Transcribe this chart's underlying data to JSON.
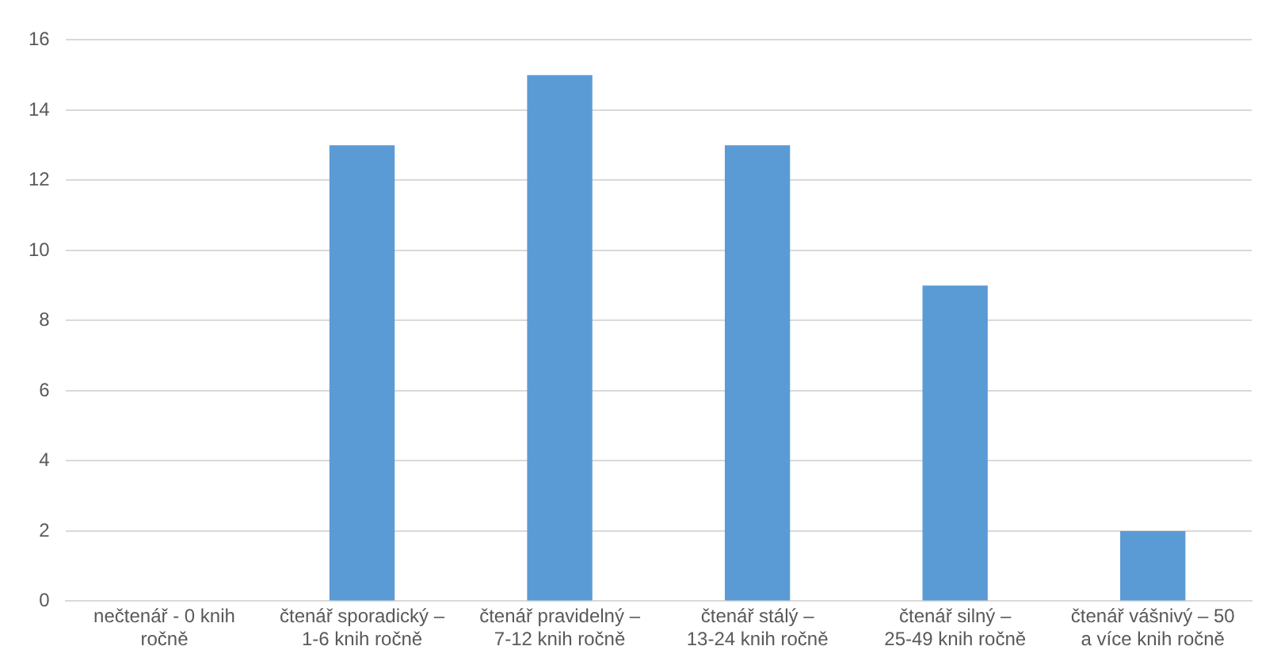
{
  "chart_data": {
    "type": "bar",
    "categories": [
      "nečtenář - 0 knih ročně",
      "čtenář sporadický – 1-6 knih ročně",
      "čtenář pravidelný – 7-12 knih ročně",
      "čtenář stálý – 13-24 knih ročně",
      "čtenář silný – 25-49 knih ročně",
      "čtenář vášnivý – 50 a více knih ročně"
    ],
    "values": [
      0,
      13,
      15,
      13,
      9,
      2
    ],
    "color": "#5b9bd5",
    "ylim": [
      0,
      16
    ],
    "yticks": [
      0,
      2,
      4,
      6,
      8,
      10,
      12,
      14,
      16
    ],
    "grid": "y",
    "legend": false
  }
}
